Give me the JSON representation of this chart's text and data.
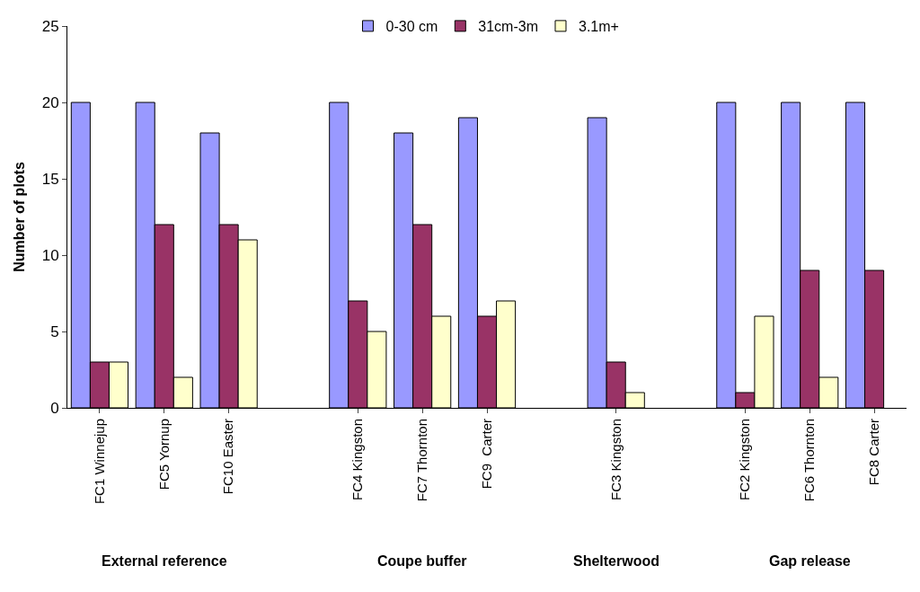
{
  "chart_data": {
    "type": "bar",
    "ylabel": "Number of plots",
    "categories": [
      "FC1 Winnejup",
      "FC5 Yornup",
      "FC10 Easter",
      null,
      "FC4 Kingston",
      "FC7 Thornton",
      "FC9  Carter",
      null,
      "FC3 Kingston",
      null,
      "FC2 Kingston",
      "FC6 Thornton",
      "FC8 Carter"
    ],
    "series": [
      {
        "name": "0-30 cm",
        "color": "#9999ff",
        "values": [
          20,
          20,
          18,
          null,
          20,
          18,
          19,
          null,
          19,
          null,
          20,
          20,
          20
        ]
      },
      {
        "name": "31cm-3m",
        "color": "#993366",
        "values": [
          3,
          12,
          12,
          null,
          7,
          12,
          6,
          null,
          3,
          null,
          1,
          9,
          9
        ]
      },
      {
        "name": "3.1m+",
        "color": "#ffffcc",
        "values": [
          3,
          2,
          11,
          null,
          5,
          6,
          7,
          null,
          1,
          null,
          6,
          2,
          null
        ]
      }
    ],
    "ylim": [
      0,
      25
    ],
    "yticks": [
      0,
      5,
      10,
      15,
      20,
      25
    ],
    "legend": "top",
    "annotations": [
      "External reference",
      "Coupe buffer",
      "Shelterwood",
      "Gap release"
    ]
  }
}
